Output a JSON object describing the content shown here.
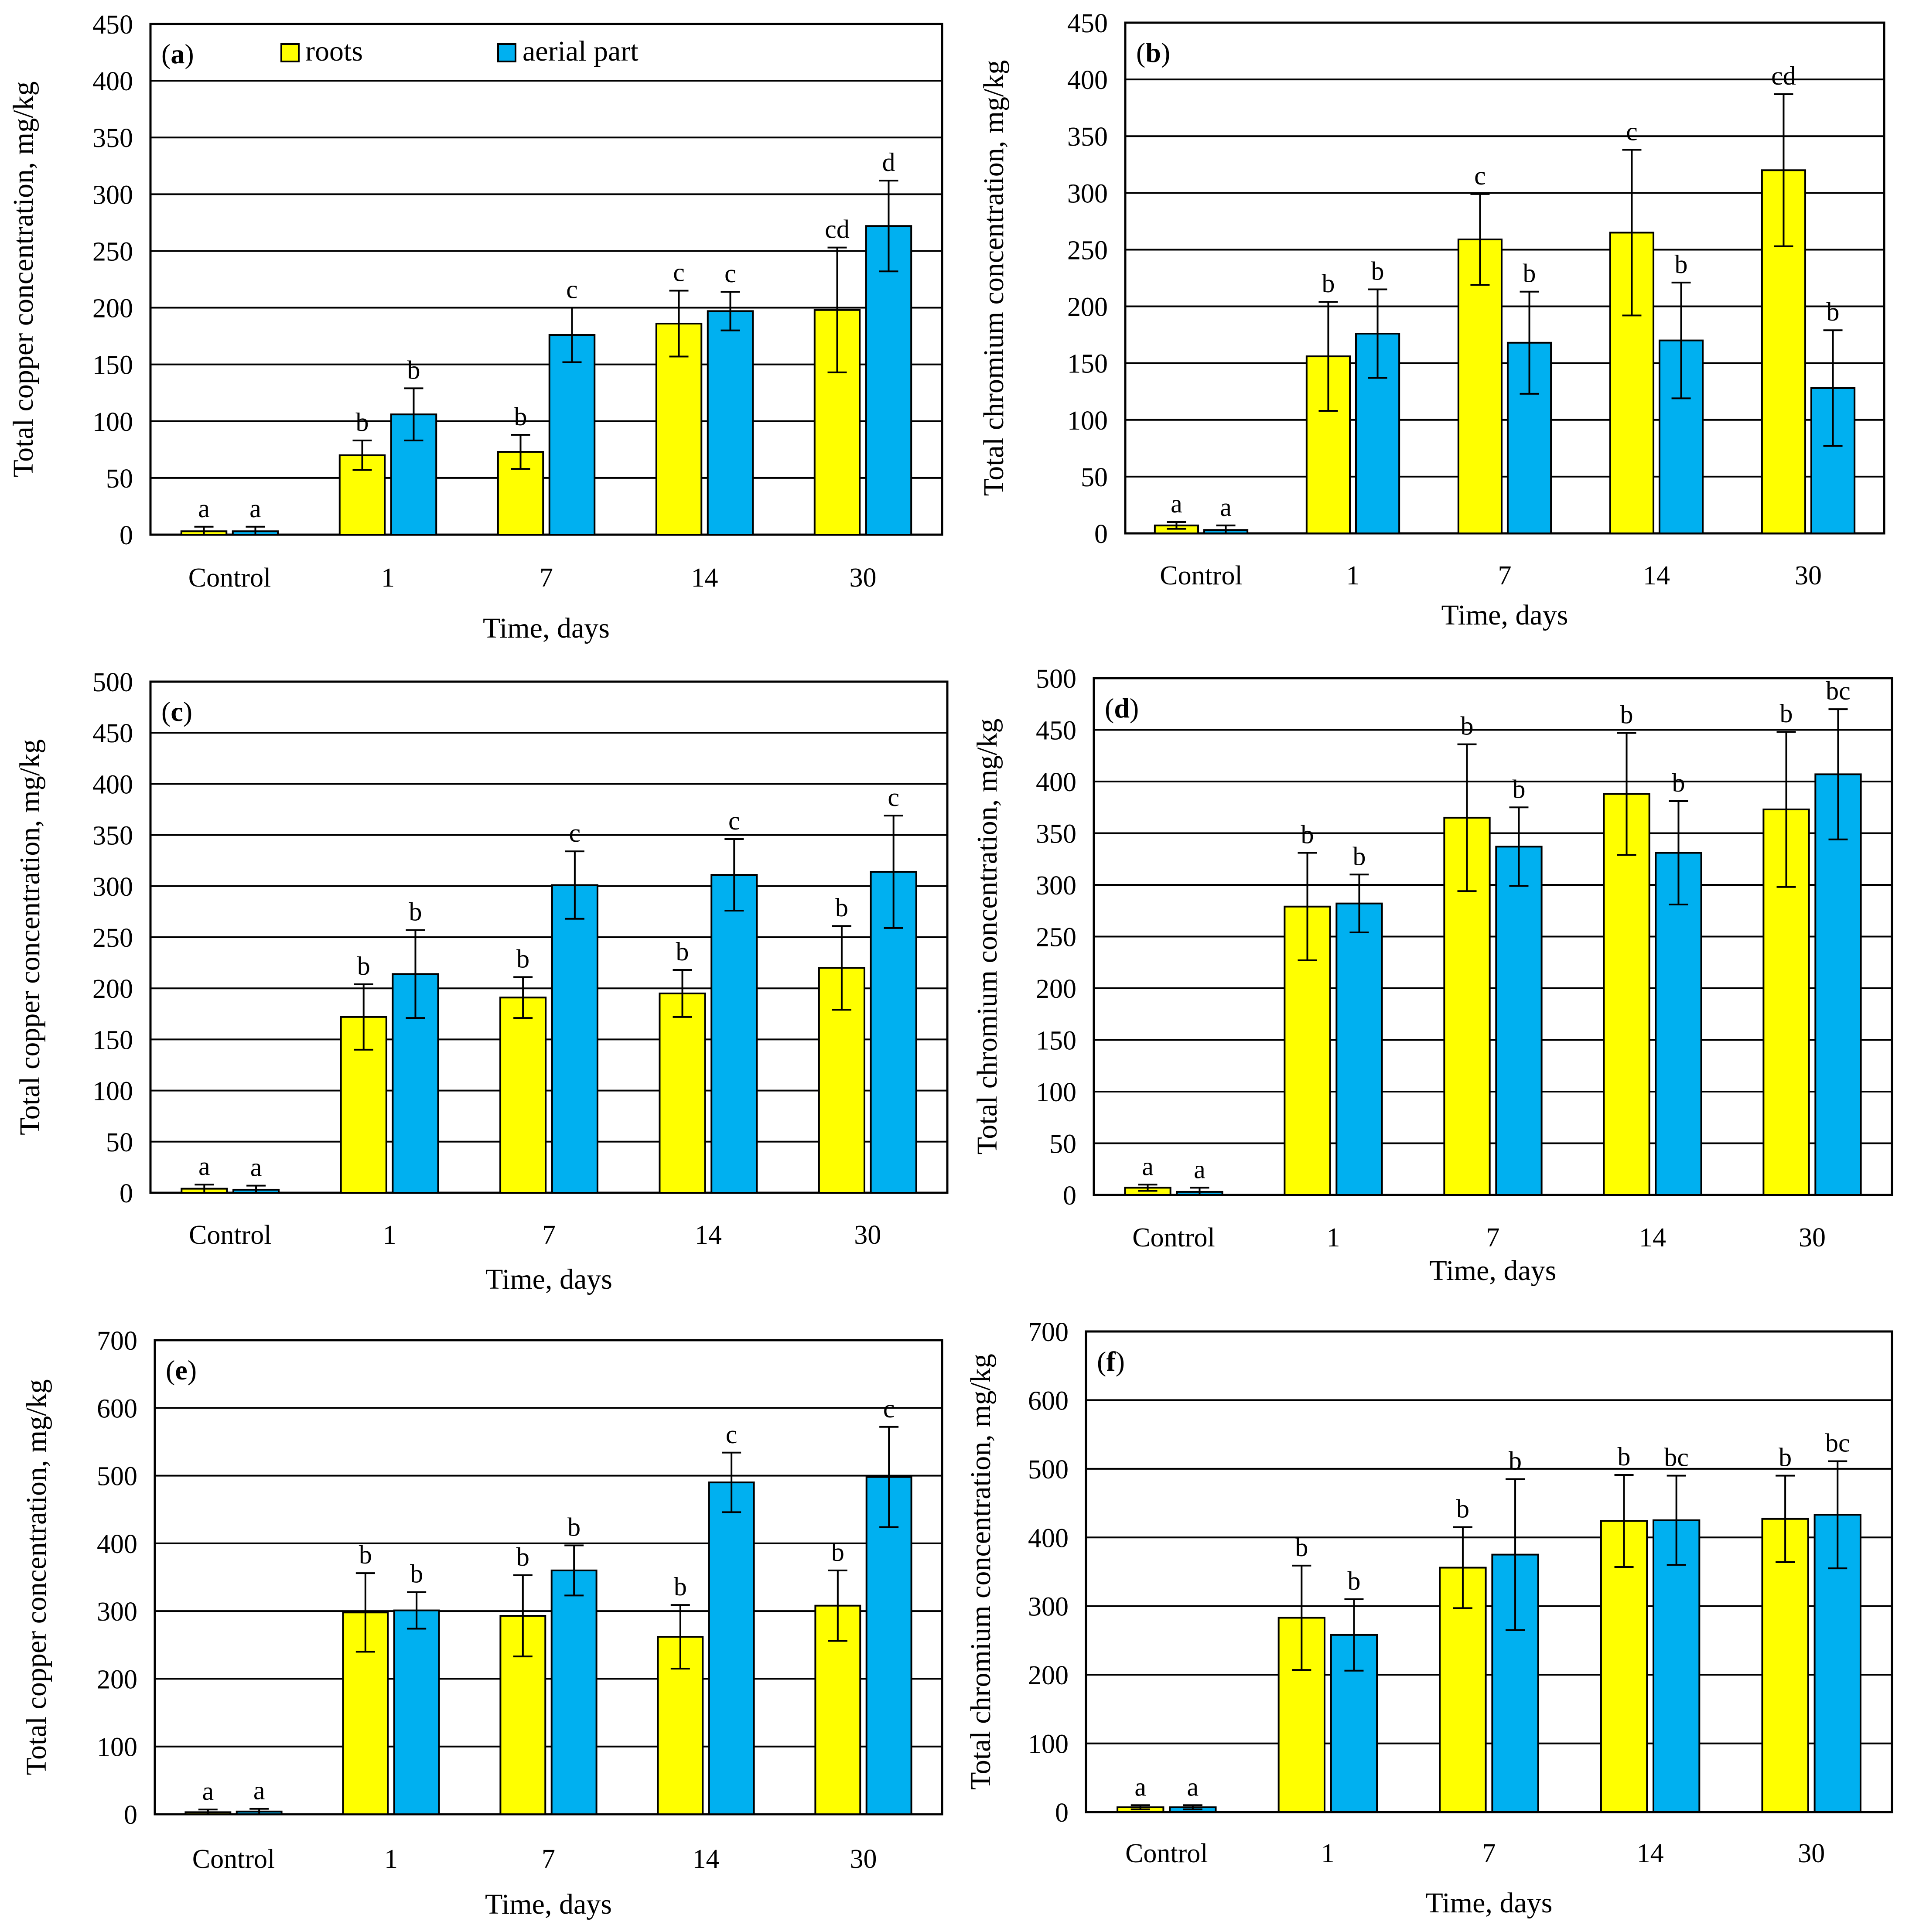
{
  "colors": {
    "roots": "#ffff00",
    "aerial": "#00b0f0",
    "grid": "#000000"
  },
  "legend": {
    "roots": "roots",
    "aerial": "aerial part"
  },
  "chart_data": [
    {
      "type": "bar",
      "panel": "(a)",
      "legend": true,
      "categories": [
        "Control",
        "1",
        "7",
        "14",
        "30"
      ],
      "xlabel": "Time, days",
      "ylabel": "Total copper concentration, mg/kg",
      "ylim": [
        0,
        450
      ],
      "yticks": [
        0,
        50,
        100,
        150,
        200,
        250,
        300,
        350,
        400,
        450
      ],
      "series": [
        {
          "name": "roots",
          "values": [
            3,
            70,
            73,
            186,
            198
          ],
          "errors": [
            4,
            13,
            15,
            29,
            55
          ],
          "letters": [
            "a",
            "b",
            "b",
            "c",
            "cd"
          ]
        },
        {
          "name": "aerial part",
          "values": [
            3,
            106,
            176,
            197,
            272
          ],
          "errors": [
            4,
            23,
            24,
            17,
            40
          ],
          "letters": [
            "a",
            "b",
            "c",
            "c",
            "d"
          ]
        }
      ]
    },
    {
      "type": "bar",
      "panel": "(b)",
      "legend": false,
      "categories": [
        "Control",
        "1",
        "7",
        "14",
        "30"
      ],
      "xlabel": "Time, days",
      "ylabel": "Total chromium concentration, mg/kg",
      "ylim": [
        0,
        450
      ],
      "yticks": [
        0,
        50,
        100,
        150,
        200,
        250,
        300,
        350,
        400,
        450
      ],
      "series": [
        {
          "name": "roots",
          "values": [
            7,
            156,
            259,
            265,
            320
          ],
          "errors": [
            3,
            48,
            40,
            73,
            67
          ],
          "letters": [
            "a",
            "b",
            "c",
            "c",
            "cd"
          ]
        },
        {
          "name": "aerial part",
          "values": [
            3,
            176,
            168,
            170,
            128
          ],
          "errors": [
            4,
            39,
            45,
            51,
            51
          ],
          "letters": [
            "a",
            "b",
            "b",
            "b",
            "b"
          ]
        }
      ]
    },
    {
      "type": "bar",
      "panel": "(c)",
      "legend": false,
      "categories": [
        "Control",
        "1",
        "7",
        "14",
        "30"
      ],
      "xlabel": "Time, days",
      "ylabel": "Total copper concentration, mg/kg",
      "ylim": [
        0,
        500
      ],
      "yticks": [
        0,
        50,
        100,
        150,
        200,
        250,
        300,
        350,
        400,
        450,
        500
      ],
      "series": [
        {
          "name": "roots",
          "values": [
            4,
            172,
            191,
            195,
            220
          ],
          "errors": [
            4,
            32,
            20,
            23,
            41
          ],
          "letters": [
            "a",
            "b",
            "b",
            "b",
            "b"
          ]
        },
        {
          "name": "aerial part",
          "values": [
            3,
            214,
            301,
            311,
            314
          ],
          "errors": [
            4,
            43,
            33,
            35,
            55
          ],
          "letters": [
            "a",
            "b",
            "c",
            "c",
            "c"
          ]
        }
      ]
    },
    {
      "type": "bar",
      "panel": "(d)",
      "legend": false,
      "categories": [
        "Control",
        "1",
        "7",
        "14",
        "30"
      ],
      "xlabel": "Time, days",
      "ylabel": "Total chromium concentration, mg/kg",
      "ylim": [
        0,
        500
      ],
      "yticks": [
        0,
        50,
        100,
        150,
        200,
        250,
        300,
        350,
        400,
        450,
        500
      ],
      "series": [
        {
          "name": "roots",
          "values": [
            7,
            279,
            365,
            388,
            373
          ],
          "errors": [
            3,
            52,
            71,
            59,
            75
          ],
          "letters": [
            "a",
            "b",
            "b",
            "b",
            "b"
          ]
        },
        {
          "name": "aerial part",
          "values": [
            3,
            282,
            337,
            331,
            407
          ],
          "errors": [
            4,
            28,
            38,
            50,
            63
          ],
          "letters": [
            "a",
            "b",
            "b",
            "b",
            "bc"
          ]
        }
      ]
    },
    {
      "type": "bar",
      "panel": "(e)",
      "legend": false,
      "categories": [
        "Control",
        "1",
        "7",
        "14",
        "30"
      ],
      "xlabel": "Time, days",
      "ylabel": "Total copper concentration, mg/kg",
      "ylim": [
        0,
        700
      ],
      "yticks": [
        0,
        100,
        200,
        300,
        400,
        500,
        600,
        700
      ],
      "series": [
        {
          "name": "roots",
          "values": [
            3,
            298,
            293,
            262,
            308
          ],
          "errors": [
            4,
            58,
            60,
            47,
            52
          ],
          "letters": [
            "a",
            "b",
            "b",
            "b",
            "b"
          ]
        },
        {
          "name": "aerial part",
          "values": [
            4,
            301,
            360,
            490,
            498
          ],
          "errors": [
            4,
            27,
            37,
            44,
            74
          ],
          "letters": [
            "a",
            "b",
            "b",
            "c",
            "c"
          ]
        }
      ]
    },
    {
      "type": "bar",
      "panel": "(f)",
      "legend": false,
      "categories": [
        "Control",
        "1",
        "7",
        "14",
        "30"
      ],
      "xlabel": "Time, days",
      "ylabel": "Total chromium concentration, mg/kg",
      "ylim": [
        0,
        700
      ],
      "yticks": [
        0,
        100,
        200,
        300,
        400,
        500,
        600,
        700
      ],
      "series": [
        {
          "name": "roots",
          "values": [
            7,
            283,
            356,
            424,
            427
          ],
          "errors": [
            3,
            76,
            59,
            67,
            63
          ],
          "letters": [
            "a",
            "b",
            "b",
            "b",
            "b"
          ]
        },
        {
          "name": "aerial part",
          "values": [
            7,
            258,
            375,
            425,
            433
          ],
          "errors": [
            3,
            52,
            110,
            65,
            78
          ],
          "letters": [
            "a",
            "b",
            "b",
            "bc",
            "bc"
          ]
        }
      ]
    }
  ]
}
